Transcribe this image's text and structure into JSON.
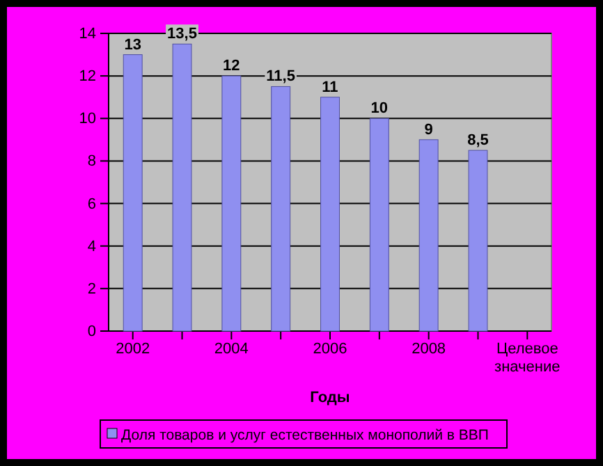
{
  "chart_data": {
    "type": "bar",
    "xlabel": "Годы",
    "categories": [
      "2002",
      null,
      "2004",
      null,
      "2006",
      null,
      "2008",
      null,
      "Целевое значение"
    ],
    "series": [
      {
        "name": "Доля товаров и услуг естественных монополий в ВВП",
        "color": "#8f8ff0",
        "values": [
          13,
          13.5,
          12,
          11.5,
          11,
          10,
          9,
          8.5,
          null
        ],
        "value_labels": [
          "13",
          "13,5",
          "12",
          "11,5",
          "11",
          "10",
          "9",
          "8,5",
          null
        ]
      }
    ],
    "ylim": [
      0,
      14
    ],
    "yticks": [
      0,
      2,
      4,
      6,
      8,
      10,
      12,
      14
    ],
    "grid": "y",
    "legend": "bottom"
  }
}
